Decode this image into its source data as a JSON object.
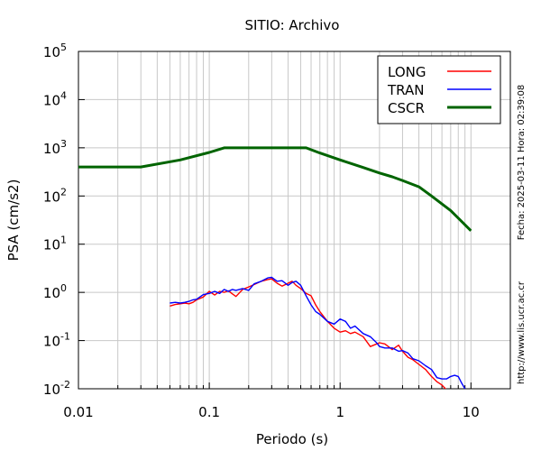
{
  "chart_data": {
    "type": "line",
    "title": "SITIO: Archivo",
    "xlabel": "Periodo (s)",
    "ylabel": "PSA (cm/s2)",
    "xscale": "log",
    "yscale": "log",
    "xlim": [
      0.01,
      20
    ],
    "ylim": [
      0.01,
      100000
    ],
    "grid": true,
    "legend_position": "top-right",
    "x_tick_labels": [
      {
        "value": 0.01,
        "label": "0.01"
      },
      {
        "value": 0.1,
        "label": "0.1"
      },
      {
        "value": 1,
        "label": "1"
      },
      {
        "value": 10,
        "label": "10"
      }
    ],
    "y_tick_labels": [
      {
        "value": 0.01,
        "base": "10",
        "exp": "-2"
      },
      {
        "value": 0.1,
        "base": "10",
        "exp": "-1"
      },
      {
        "value": 1,
        "base": "10",
        "exp": "0"
      },
      {
        "value": 10,
        "base": "10",
        "exp": "1"
      },
      {
        "value": 100,
        "base": "10",
        "exp": "2"
      },
      {
        "value": 1000,
        "base": "10",
        "exp": "3"
      },
      {
        "value": 10000,
        "base": "10",
        "exp": "4"
      },
      {
        "value": 100000,
        "base": "10",
        "exp": "5"
      }
    ],
    "series": [
      {
        "name": "LONG",
        "color": "#ff0000",
        "x": [
          0.05,
          0.055,
          0.06,
          0.065,
          0.07,
          0.075,
          0.08,
          0.09,
          0.1,
          0.11,
          0.12,
          0.13,
          0.14,
          0.15,
          0.16,
          0.18,
          0.2,
          0.22,
          0.25,
          0.28,
          0.3,
          0.33,
          0.36,
          0.4,
          0.43,
          0.46,
          0.5,
          0.55,
          0.6,
          0.65,
          0.7,
          0.8,
          0.9,
          1.0,
          1.1,
          1.2,
          1.3,
          1.5,
          1.7,
          1.9,
          2.0,
          2.2,
          2.5,
          2.8,
          3.0,
          3.3,
          3.6,
          4.0,
          4.5,
          5.0,
          5.5,
          6.0,
          6.5
        ],
        "y": [
          0.52,
          0.56,
          0.58,
          0.6,
          0.58,
          0.62,
          0.7,
          0.8,
          1.05,
          0.88,
          1.05,
          1.0,
          1.08,
          0.93,
          0.82,
          1.15,
          1.3,
          1.45,
          1.7,
          1.85,
          1.9,
          1.55,
          1.35,
          1.55,
          1.7,
          1.4,
          1.2,
          0.95,
          0.85,
          0.55,
          0.4,
          0.25,
          0.18,
          0.15,
          0.16,
          0.14,
          0.15,
          0.12,
          0.075,
          0.085,
          0.09,
          0.085,
          0.065,
          0.08,
          0.06,
          0.045,
          0.04,
          0.032,
          0.025,
          0.018,
          0.014,
          0.012,
          0.0095
        ]
      },
      {
        "name": "TRAN",
        "color": "#0000ff",
        "x": [
          0.05,
          0.055,
          0.06,
          0.065,
          0.07,
          0.075,
          0.08,
          0.09,
          0.1,
          0.11,
          0.12,
          0.13,
          0.14,
          0.15,
          0.16,
          0.18,
          0.2,
          0.22,
          0.25,
          0.28,
          0.3,
          0.33,
          0.36,
          0.4,
          0.43,
          0.46,
          0.5,
          0.55,
          0.6,
          0.65,
          0.7,
          0.8,
          0.9,
          1.0,
          1.1,
          1.2,
          1.3,
          1.5,
          1.7,
          1.9,
          2.0,
          2.2,
          2.5,
          2.8,
          3.0,
          3.3,
          3.6,
          4.0,
          4.5,
          5.0,
          5.5,
          6.0,
          6.5,
          7.0,
          7.5,
          8.0,
          8.5,
          9.0
        ],
        "y": [
          0.6,
          0.62,
          0.6,
          0.62,
          0.65,
          0.7,
          0.72,
          0.9,
          0.95,
          1.05,
          0.95,
          1.15,
          1.05,
          1.15,
          1.1,
          1.2,
          1.1,
          1.5,
          1.7,
          2.0,
          2.05,
          1.7,
          1.75,
          1.4,
          1.6,
          1.7,
          1.4,
          0.85,
          0.55,
          0.4,
          0.35,
          0.25,
          0.22,
          0.28,
          0.25,
          0.18,
          0.2,
          0.14,
          0.12,
          0.09,
          0.075,
          0.07,
          0.07,
          0.06,
          0.062,
          0.055,
          0.042,
          0.038,
          0.03,
          0.025,
          0.017,
          0.016,
          0.016,
          0.018,
          0.019,
          0.018,
          0.013,
          0.01
        ]
      },
      {
        "name": "CSCR",
        "color": "#006400",
        "x": [
          0.01,
          0.03,
          0.06,
          0.1,
          0.13,
          0.2,
          0.3,
          0.4,
          0.55,
          0.7,
          1.0,
          1.5,
          2.0,
          2.5,
          3.0,
          4.0,
          5.0,
          7.0,
          10.0
        ],
        "y": [
          400,
          400,
          560,
          800,
          1000,
          1000,
          1000,
          1000,
          1000,
          780,
          560,
          390,
          300,
          250,
          210,
          155,
          100,
          50,
          19
        ]
      }
    ],
    "side_text": {
      "date_stamp": "Fecha: 2025-03-11 Hora: 02:39:08",
      "url": "http://www.lis.ucr.ac.cr"
    }
  }
}
